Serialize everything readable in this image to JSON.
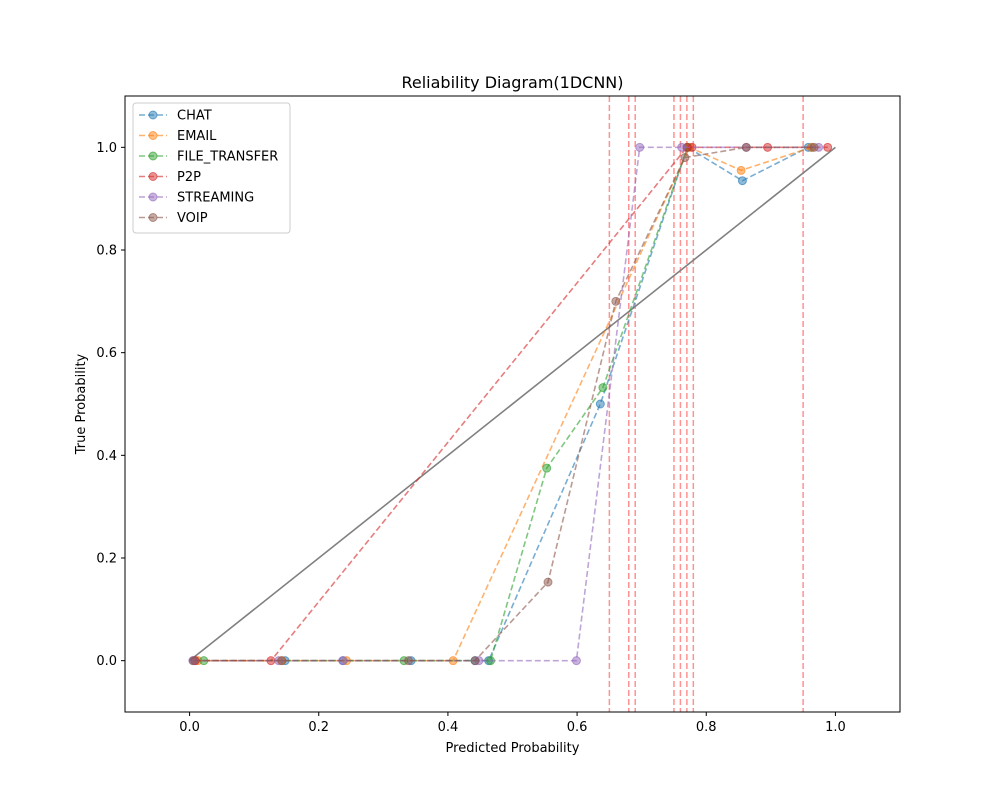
{
  "chart_data": {
    "type": "line",
    "title": "Reliability Diagram(1DCNN)",
    "xlabel": "Predicted Probability",
    "ylabel": "True Probability",
    "xlim": [
      -0.1,
      1.1
    ],
    "ylim": [
      -0.1,
      1.1
    ],
    "xticks": [
      "0.0",
      "0.2",
      "0.4",
      "0.6",
      "0.8",
      "1.0"
    ],
    "yticks": [
      "0.0",
      "0.2",
      "0.4",
      "0.6",
      "0.8",
      "1.0"
    ],
    "grid": false,
    "legend_position": "upper-left",
    "series": [
      {
        "name": "CHAT",
        "color": "#1f77b4",
        "points": [
          [
            0.008,
            0.0
          ],
          [
            0.148,
            0.0
          ],
          [
            0.238,
            0.0
          ],
          [
            0.343,
            0.0
          ],
          [
            0.442,
            0.0
          ],
          [
            0.463,
            0.0
          ],
          [
            0.636,
            0.5
          ],
          [
            0.771,
            1.0
          ],
          [
            0.856,
            0.935
          ],
          [
            0.958,
            1.0
          ],
          [
            0.963,
            1.0
          ]
        ]
      },
      {
        "name": "EMAIL",
        "color": "#ff7f0e",
        "points": [
          [
            0.013,
            0.0
          ],
          [
            0.142,
            0.0
          ],
          [
            0.243,
            0.0
          ],
          [
            0.408,
            0.0
          ],
          [
            0.774,
            1.0
          ],
          [
            0.854,
            0.955
          ],
          [
            0.963,
            1.0
          ]
        ]
      },
      {
        "name": "FILE_TRANSFER",
        "color": "#2ca02c",
        "points": [
          [
            0.022,
            0.0
          ],
          [
            0.332,
            0.0
          ],
          [
            0.466,
            0.0
          ],
          [
            0.553,
            0.375
          ],
          [
            0.64,
            0.532
          ],
          [
            0.771,
            1.0
          ]
        ]
      },
      {
        "name": "P2P",
        "color": "#d62728",
        "points": [
          [
            0.009,
            0.0
          ],
          [
            0.126,
            0.0
          ],
          [
            0.77,
            1.0
          ],
          [
            0.778,
            1.0
          ],
          [
            0.895,
            1.0
          ],
          [
            0.988,
            1.0
          ]
        ]
      },
      {
        "name": "STREAMING",
        "color": "#9467bd",
        "points": [
          [
            0.005,
            0.0
          ],
          [
            0.138,
            0.0
          ],
          [
            0.237,
            0.0
          ],
          [
            0.448,
            0.0
          ],
          [
            0.599,
            0.0
          ],
          [
            0.697,
            1.0
          ],
          [
            0.762,
            1.0
          ],
          [
            0.862,
            1.0
          ],
          [
            0.974,
            1.0
          ]
        ]
      },
      {
        "name": "VOIP",
        "color": "#8c564b",
        "points": [
          [
            0.006,
            0.0
          ],
          [
            0.143,
            0.0
          ],
          [
            0.339,
            0.0
          ],
          [
            0.442,
            0.0
          ],
          [
            0.555,
            0.153
          ],
          [
            0.66,
            0.7
          ],
          [
            0.767,
            0.98
          ],
          [
            0.862,
            1.0
          ],
          [
            0.967,
            1.0
          ]
        ]
      }
    ],
    "reference_line": {
      "from": [
        0.0,
        0.0
      ],
      "to": [
        1.0,
        1.0
      ],
      "color": "#808080"
    },
    "threshold_lines": {
      "color": "#ff8080",
      "x": [
        0.65,
        0.68,
        0.69,
        0.75,
        0.76,
        0.77,
        0.78,
        0.95
      ]
    }
  }
}
